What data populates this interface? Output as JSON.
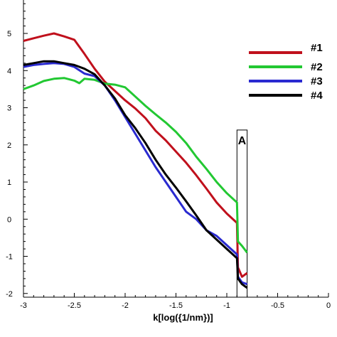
{
  "chart_data": {
    "type": "line",
    "title": "",
    "xlabel": "k[log({1/nm})]",
    "ylabel": "",
    "xlim": [
      -3,
      0
    ],
    "ylim": [
      -2.1,
      5.9
    ],
    "x_ticks": [
      -3,
      -2.5,
      -2,
      -1.5,
      -1,
      -0.5,
      0
    ],
    "x_tick_labels": [
      "-3",
      "-2.5",
      "-2",
      "-1.5",
      "-1",
      "-0.5",
      "0"
    ],
    "y_ticks": [
      -2,
      -1,
      0,
      1,
      2,
      3,
      4,
      5
    ],
    "y_tick_labels": [
      "-2",
      "-1",
      "0",
      "1",
      "2",
      "3",
      "4",
      "5"
    ],
    "grid": false,
    "legend_position": "top-right",
    "annotation": {
      "label": "A",
      "x_range": [
        -0.9,
        -0.8
      ]
    },
    "series": [
      {
        "name": "#1",
        "color": "#c0101c",
        "points": [
          [
            -3,
            4.8
          ],
          [
            -2.9,
            4.87
          ],
          [
            -2.8,
            4.94
          ],
          [
            -2.7,
            5.0
          ],
          [
            -2.6,
            4.92
          ],
          [
            -2.5,
            4.83
          ],
          [
            -2.4,
            4.45
          ],
          [
            -2.3,
            4.05
          ],
          [
            -2.2,
            3.7
          ],
          [
            -2.1,
            3.45
          ],
          [
            -2.0,
            3.2
          ],
          [
            -1.9,
            2.98
          ],
          [
            -1.8,
            2.72
          ],
          [
            -1.7,
            2.38
          ],
          [
            -1.6,
            2.12
          ],
          [
            -1.5,
            1.82
          ],
          [
            -1.4,
            1.52
          ],
          [
            -1.3,
            1.18
          ],
          [
            -1.2,
            0.82
          ],
          [
            -1.1,
            0.45
          ],
          [
            -1.0,
            0.15
          ],
          [
            -0.9,
            -0.1
          ],
          [
            -0.89,
            -1.3
          ],
          [
            -0.85,
            -1.55
          ],
          [
            -0.8,
            -1.45
          ]
        ]
      },
      {
        "name": "#2",
        "color": "#22c832",
        "points": [
          [
            -3,
            3.5
          ],
          [
            -2.9,
            3.6
          ],
          [
            -2.8,
            3.72
          ],
          [
            -2.7,
            3.78
          ],
          [
            -2.6,
            3.8
          ],
          [
            -2.5,
            3.73
          ],
          [
            -2.45,
            3.66
          ],
          [
            -2.4,
            3.78
          ],
          [
            -2.3,
            3.75
          ],
          [
            -2.2,
            3.65
          ],
          [
            -2.1,
            3.62
          ],
          [
            -2.0,
            3.55
          ],
          [
            -1.9,
            3.3
          ],
          [
            -1.8,
            3.05
          ],
          [
            -1.7,
            2.82
          ],
          [
            -1.6,
            2.6
          ],
          [
            -1.5,
            2.35
          ],
          [
            -1.4,
            2.05
          ],
          [
            -1.3,
            1.68
          ],
          [
            -1.2,
            1.35
          ],
          [
            -1.1,
            1.0
          ],
          [
            -1.0,
            0.7
          ],
          [
            -0.9,
            0.45
          ],
          [
            -0.89,
            -0.6
          ],
          [
            -0.85,
            -0.72
          ],
          [
            -0.8,
            -0.9
          ]
        ]
      },
      {
        "name": "#3",
        "color": "#2a2ad0",
        "points": [
          [
            -3,
            4.1
          ],
          [
            -2.9,
            4.15
          ],
          [
            -2.8,
            4.18
          ],
          [
            -2.7,
            4.2
          ],
          [
            -2.6,
            4.18
          ],
          [
            -2.5,
            4.1
          ],
          [
            -2.4,
            3.92
          ],
          [
            -2.3,
            3.85
          ],
          [
            -2.2,
            3.6
          ],
          [
            -2.1,
            3.2
          ],
          [
            -2.0,
            2.75
          ],
          [
            -1.9,
            2.3
          ],
          [
            -1.8,
            1.85
          ],
          [
            -1.7,
            1.4
          ],
          [
            -1.6,
            1.0
          ],
          [
            -1.5,
            0.6
          ],
          [
            -1.4,
            0.2
          ],
          [
            -1.3,
            0.0
          ],
          [
            -1.2,
            -0.3
          ],
          [
            -1.1,
            -0.45
          ],
          [
            -1.0,
            -0.7
          ],
          [
            -0.9,
            -0.95
          ],
          [
            -0.89,
            -1.55
          ],
          [
            -0.85,
            -1.7
          ],
          [
            -0.8,
            -1.75
          ]
        ]
      },
      {
        "name": "#4",
        "color": "#000000",
        "points": [
          [
            -3,
            4.15
          ],
          [
            -2.9,
            4.2
          ],
          [
            -2.8,
            4.25
          ],
          [
            -2.7,
            4.25
          ],
          [
            -2.6,
            4.2
          ],
          [
            -2.5,
            4.15
          ],
          [
            -2.4,
            4.05
          ],
          [
            -2.3,
            3.9
          ],
          [
            -2.2,
            3.6
          ],
          [
            -2.1,
            3.25
          ],
          [
            -2.0,
            2.8
          ],
          [
            -1.9,
            2.45
          ],
          [
            -1.8,
            2.05
          ],
          [
            -1.7,
            1.6
          ],
          [
            -1.6,
            1.2
          ],
          [
            -1.5,
            0.85
          ],
          [
            -1.4,
            0.48
          ],
          [
            -1.3,
            0.1
          ],
          [
            -1.2,
            -0.3
          ],
          [
            -1.1,
            -0.55
          ],
          [
            -1.0,
            -0.8
          ],
          [
            -0.9,
            -1.05
          ],
          [
            -0.89,
            -1.6
          ],
          [
            -0.85,
            -1.75
          ],
          [
            -0.8,
            -1.85
          ]
        ]
      }
    ]
  }
}
